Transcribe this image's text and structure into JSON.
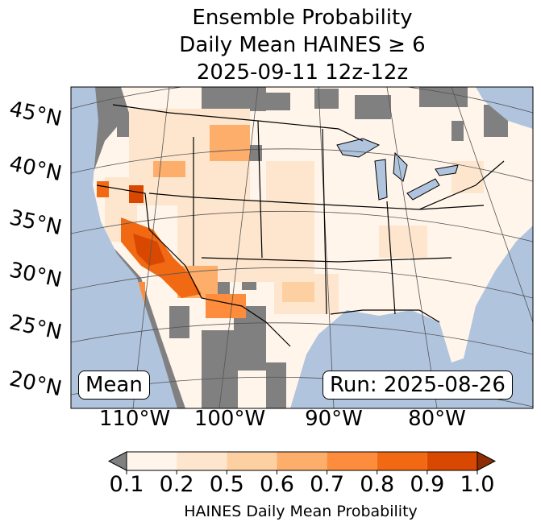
{
  "title": {
    "line1": "Ensemble Probability",
    "line2": "Daily Mean HAINES ≥ 6",
    "line3": "2025-09-11 12z-12z"
  },
  "map": {
    "lat_labels": [
      "45°N",
      "40°N",
      "35°N",
      "30°N",
      "25°N",
      "20°N"
    ],
    "lon_labels": [
      "110°W",
      "100°W",
      "90°W",
      "80°W"
    ],
    "stat_label": "Mean",
    "run_label": "Run: 2025-08-26",
    "colors": {
      "ocean": "#b0c4de",
      "masked": "#808080",
      "lakes": "#b0c4de"
    }
  },
  "colorbar": {
    "ticks": [
      "0.1",
      "0.2",
      "0.5",
      "0.6",
      "0.7",
      "0.8",
      "0.9",
      "1.0"
    ],
    "colors": [
      "#fff5eb",
      "#fee6ce",
      "#fdd0a2",
      "#fdae6b",
      "#fd8d3c",
      "#f16913",
      "#d94801"
    ],
    "under_color": "#808080",
    "over_color": "#8c2d04",
    "label": "HAINES Daily Mean Probability"
  }
}
